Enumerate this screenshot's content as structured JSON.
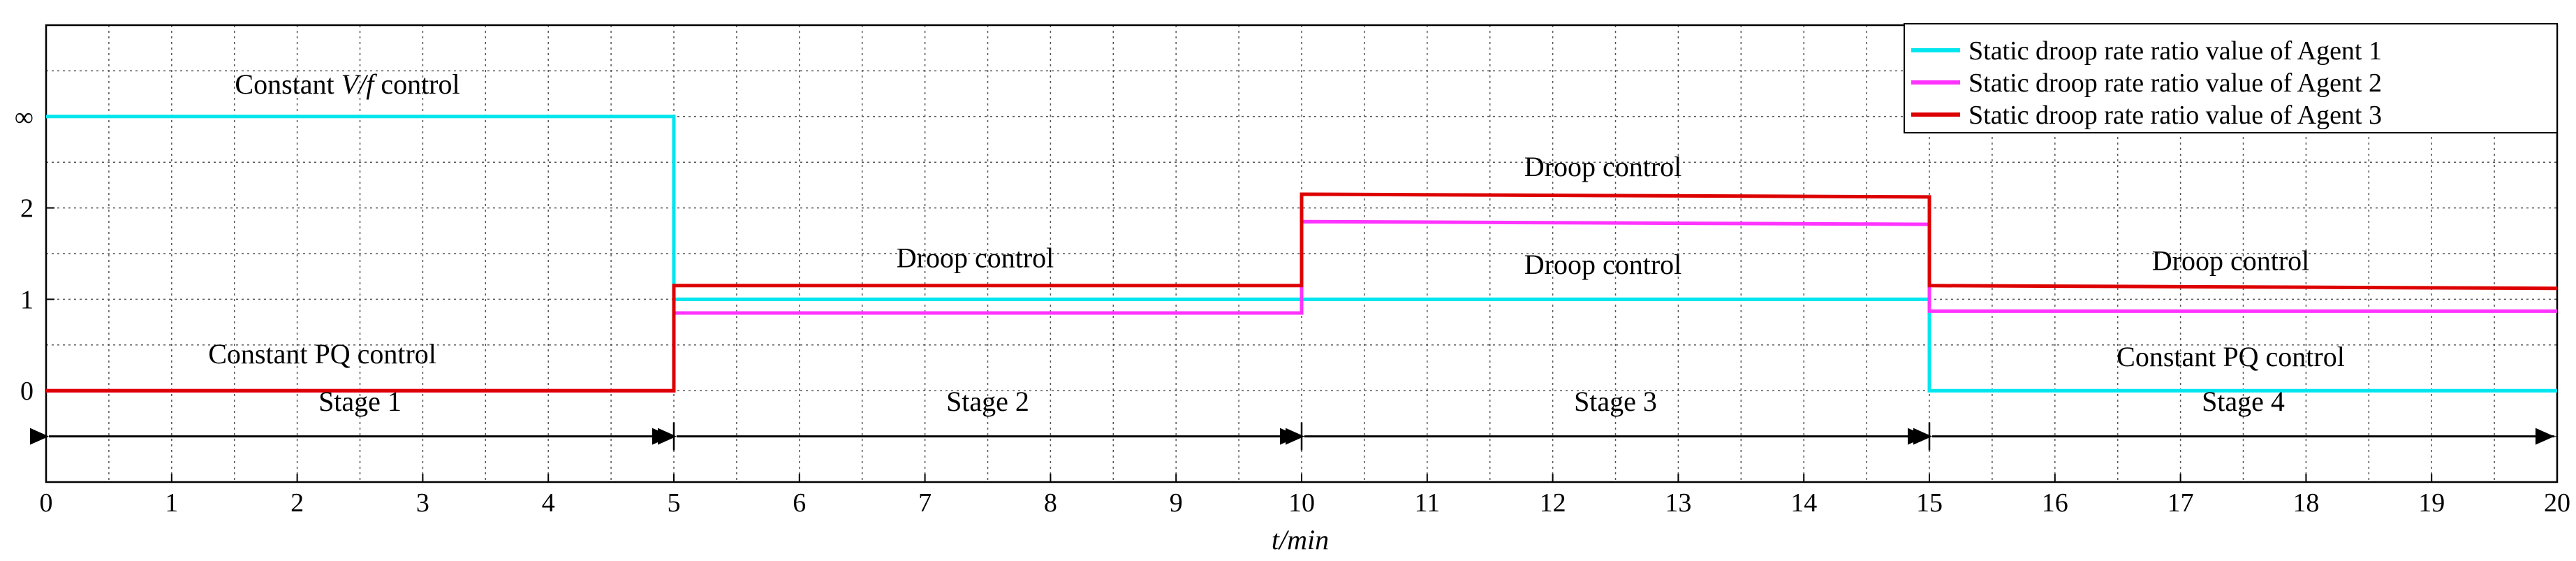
{
  "chart_data": {
    "type": "line",
    "xlabel": "t/min",
    "xlim": [
      0,
      20
    ],
    "x_ticks": [
      0,
      1,
      2,
      3,
      4,
      5,
      6,
      7,
      8,
      9,
      10,
      11,
      12,
      13,
      14,
      15,
      16,
      17,
      18,
      19,
      20
    ],
    "y_ticks": [
      {
        "value": 0,
        "label": "0"
      },
      {
        "value": 1,
        "label": "1"
      },
      {
        "value": 2,
        "label": "2"
      },
      {
        "value": 3,
        "label": "∞"
      }
    ],
    "ylim": [
      -1,
      4
    ],
    "grid": true,
    "legend_position": "top-right",
    "colors": {
      "agent1": "#00e5ee",
      "agent2": "#ff33ff",
      "agent3": "#dd0000",
      "arrows": "#000000",
      "grid": "#555555"
    },
    "series": [
      {
        "name": "Static droop rate ratio value of Agent 1",
        "color": "#00e5ee",
        "points": [
          [
            0,
            3
          ],
          [
            5,
            3
          ],
          [
            5,
            1
          ],
          [
            15,
            1
          ],
          [
            15,
            0
          ],
          [
            20,
            0
          ]
        ]
      },
      {
        "name": "Static droop rate ratio value of Agent 2",
        "color": "#ff33ff",
        "points": [
          [
            0,
            0
          ],
          [
            5,
            0
          ],
          [
            5,
            0.85
          ],
          [
            10,
            0.85
          ],
          [
            10,
            1.85
          ],
          [
            15,
            1.82
          ],
          [
            15,
            0.87
          ],
          [
            20,
            0.87
          ]
        ]
      },
      {
        "name": "Static droop rate ratio value of Agent 3",
        "color": "#dd0000",
        "points": [
          [
            0,
            0
          ],
          [
            5,
            0
          ],
          [
            5,
            1.15
          ],
          [
            10,
            1.15
          ],
          [
            10,
            2.15
          ],
          [
            15,
            2.12
          ],
          [
            15,
            1.15
          ],
          [
            20,
            1.12
          ]
        ]
      }
    ],
    "annotations": [
      {
        "text": "Constant ",
        "italic_suffix": "V/f",
        "suffix": " control",
        "x": 2.4,
        "y": 3.25
      },
      {
        "text": "Constant PQ control",
        "x": 2.2,
        "y": 0.3
      },
      {
        "text": "Droop control",
        "x": 7.4,
        "y": 1.35
      },
      {
        "text": "Droop control",
        "x": 12.4,
        "y": 2.35
      },
      {
        "text": "Droop control",
        "x": 12.4,
        "y": 1.28
      },
      {
        "text": "Droop control",
        "x": 17.4,
        "y": 1.32
      },
      {
        "text": "Constant PQ control",
        "x": 17.4,
        "y": 0.27
      }
    ],
    "stages": [
      {
        "label": "Stage 1",
        "from": 0,
        "to": 5
      },
      {
        "label": "Stage 2",
        "from": 5,
        "to": 10
      },
      {
        "label": "Stage 3",
        "from": 10,
        "to": 15
      },
      {
        "label": "Stage 4",
        "from": 15,
        "to": 20
      }
    ],
    "stage_arrow_y": -0.5,
    "stage_label_y": -0.22
  }
}
